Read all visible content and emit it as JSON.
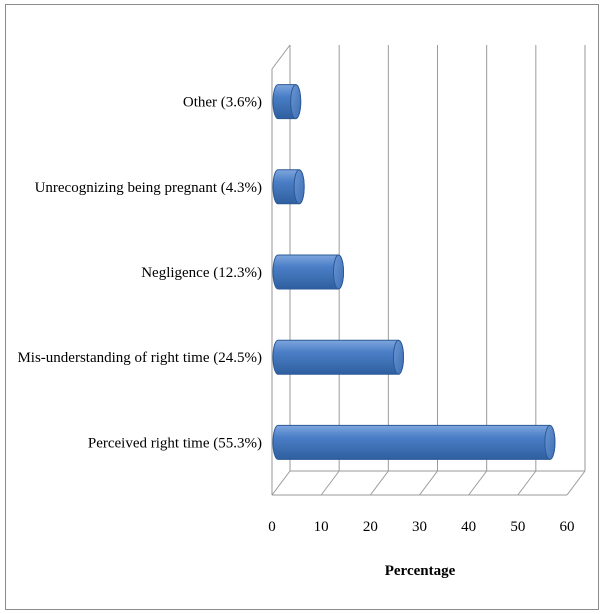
{
  "chart_data": {
    "type": "bar",
    "orientation": "horizontal",
    "categories": [
      "Perceived right time (55.3%)",
      "Mis-understanding of right time (24.5%)",
      "Negligence (12.3%)",
      "Unrecognizing being pregnant (4.3%)",
      "Other (3.6%)"
    ],
    "values": [
      55.3,
      24.5,
      12.3,
      4.3,
      3.6
    ],
    "xlabel": "Percentage",
    "ylabel": "",
    "xlim": [
      0,
      60
    ],
    "xticks": [
      "0",
      "10",
      "20",
      "30",
      "40",
      "50",
      "60"
    ],
    "grid": true,
    "legend": "none",
    "style": "3d-cylinder",
    "bar_color": "#4a7ec6",
    "bar_edge_color": "#2c5a96"
  }
}
